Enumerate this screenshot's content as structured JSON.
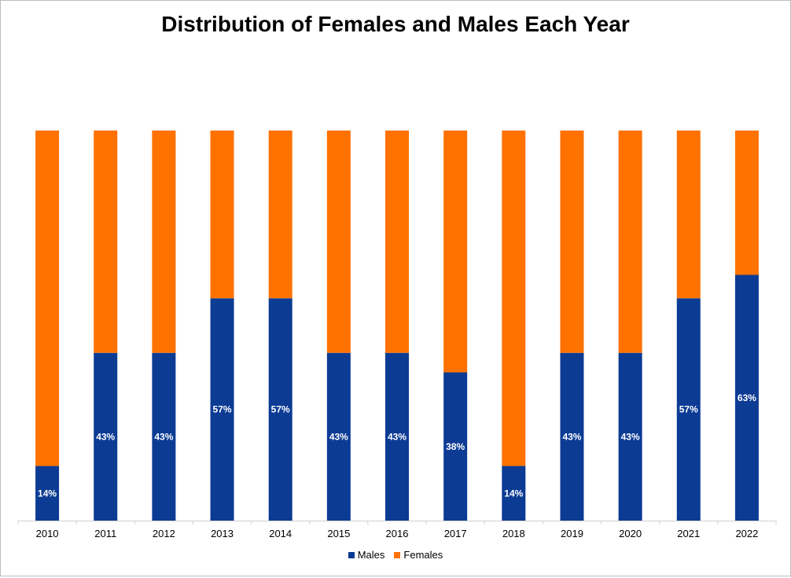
{
  "chart_data": {
    "type": "bar",
    "stacked": true,
    "title": "Distribution of Females and Males Each Year",
    "categories": [
      "2010",
      "2011",
      "2012",
      "2013",
      "2014",
      "2015",
      "2016",
      "2017",
      "2018",
      "2019",
      "2020",
      "2021",
      "2022"
    ],
    "series": [
      {
        "name": "Males",
        "color": "#0c3b94",
        "values": [
          14,
          43,
          43,
          57,
          57,
          43,
          43,
          38,
          14,
          43,
          43,
          57,
          63
        ],
        "labels": [
          "14%",
          "43%",
          "43%",
          "57%",
          "57%",
          "43%",
          "43%",
          "38%",
          "14%",
          "43%",
          "43%",
          "57%",
          "63%"
        ]
      },
      {
        "name": "Females",
        "color": "#ff7200",
        "values": [
          86,
          57,
          57,
          43,
          43,
          57,
          57,
          62,
          86,
          57,
          57,
          43,
          37
        ]
      }
    ],
    "ylim": [
      0,
      100
    ],
    "grid": false,
    "legend_position": "bottom"
  }
}
